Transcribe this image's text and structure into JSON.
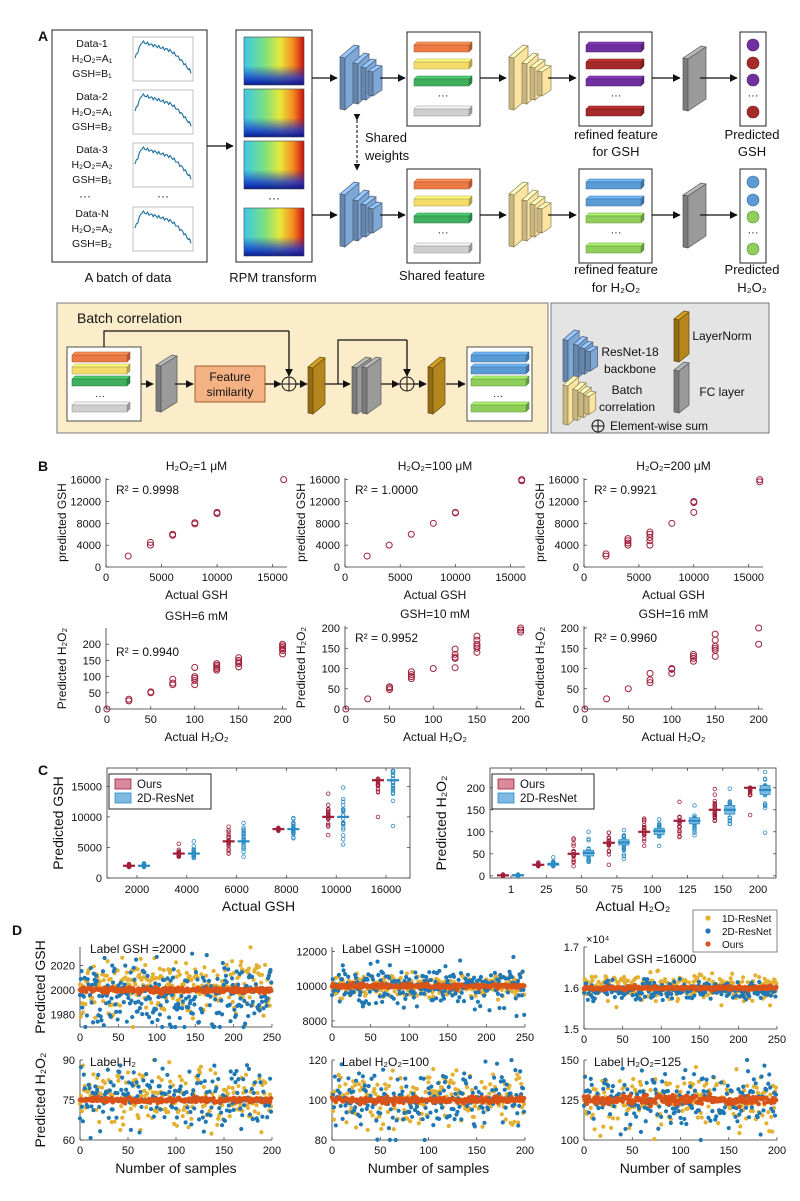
{
  "panel_labels": {
    "a": "A",
    "b": "B",
    "c": "C",
    "d": "D"
  },
  "diagram": {
    "data_entries": [
      {
        "name": "Data-1",
        "h2o2": "H₂O₂=A₁",
        "gsh": "GSH=B₁"
      },
      {
        "name": "Data-2",
        "h2o2": "H₂O₂=A₁",
        "gsh": "GSH=B₂"
      },
      {
        "name": "Data-3",
        "h2o2": "H₂O₂=A₂",
        "gsh": "GSH=B₁"
      },
      {
        "name": "Data-N",
        "h2o2": "H₂O₂=A₂",
        "gsh": "GSH=B₂"
      }
    ],
    "ellipsis": "···",
    "shared_weights": [
      "Shared",
      "weights"
    ],
    "labels": {
      "batch": "A batch of data",
      "rpm": "RPM transform",
      "shared_feature": "Shared feature",
      "refined_gsh": [
        "refined feature",
        "for GSH"
      ],
      "refined_h2o2": [
        "refined feature",
        "for H₂O₂"
      ],
      "pred_gsh": [
        "Predicted",
        "GSH"
      ],
      "pred_h2o2": [
        "Predicted",
        "H₂O₂"
      ]
    },
    "batch_correlation": {
      "title": "Batch correlation",
      "feature_similarity": [
        "Feature",
        "similarity"
      ]
    },
    "legend": {
      "resnet": [
        "ResNet-18",
        "backbone"
      ],
      "layernorm": "LayerNorm",
      "batchcorr": [
        "Batch",
        "correlation"
      ],
      "fc": "FC layer",
      "sum": "Element-wise sum"
    },
    "colors": {
      "backbone": "#7fa7d6",
      "batch_corr": "#fbe3a0",
      "fc": "#9a9a9a",
      "layernorm": "#b5861c",
      "orange": "#ec7a45",
      "yellow": "#f3dc6a",
      "green": "#3fae5d",
      "gray": "#cfcfcf",
      "purple": "#7030a0",
      "darkred": "#a52a2a",
      "blue": "#5b9bd5",
      "lightgreen": "#8fce5a",
      "similarity": "#f4b183",
      "batch_bg": "#fbedc9",
      "legend_bg": "#e4e4e4"
    }
  },
  "chart_data": [
    {
      "type": "scatter",
      "panel": "B",
      "title": "H₂O₂=1 μM",
      "annotation": "R² = 0.9998",
      "xlabel": "Actual GSH",
      "ylabel": "predicted GSH",
      "xlim": [
        0,
        16300
      ],
      "ylim": [
        0,
        16300
      ],
      "xticks": [
        0,
        5000,
        10000,
        15000
      ],
      "yticks": [
        0,
        4000,
        8000,
        12000,
        16000
      ],
      "color": "#a0203a",
      "points": [
        {
          "x": 2000,
          "y": [
            2000
          ]
        },
        {
          "x": 4000,
          "y": [
            4000,
            4500
          ]
        },
        {
          "x": 6000,
          "y": [
            5800,
            6000
          ]
        },
        {
          "x": 8000,
          "y": [
            7900,
            8100
          ]
        },
        {
          "x": 10000,
          "y": [
            9800,
            10000
          ]
        },
        {
          "x": 16000,
          "y": [
            16000
          ]
        }
      ]
    },
    {
      "type": "scatter",
      "panel": "B",
      "title": "H₂O₂=100 μM",
      "annotation": "R² = 1.0000",
      "xlabel": "Actual GSH",
      "ylabel": "predicted GSH",
      "xlim": [
        0,
        16300
      ],
      "ylim": [
        0,
        16300
      ],
      "xticks": [
        0,
        5000,
        10000,
        15000
      ],
      "yticks": [
        0,
        4000,
        8000,
        12000,
        16000
      ],
      "color": "#a0203a",
      "points": [
        {
          "x": 2000,
          "y": [
            2000
          ]
        },
        {
          "x": 4000,
          "y": [
            4000
          ]
        },
        {
          "x": 6000,
          "y": [
            6000
          ]
        },
        {
          "x": 8000,
          "y": [
            8000
          ]
        },
        {
          "x": 10000,
          "y": [
            9900,
            10000
          ]
        },
        {
          "x": 16000,
          "y": [
            15800,
            16000
          ]
        }
      ]
    },
    {
      "type": "scatter",
      "panel": "B",
      "title": "H₂O₂=200 μM",
      "annotation": "R² = 0.9921",
      "xlabel": "Actual GSH",
      "ylabel": "predicted GSH",
      "xlim": [
        0,
        16300
      ],
      "ylim": [
        0,
        16300
      ],
      "xticks": [
        0,
        5000,
        10000,
        15000
      ],
      "yticks": [
        0,
        4000,
        8000,
        12000,
        16000
      ],
      "color": "#a0203a",
      "points": [
        {
          "x": 2000,
          "y": [
            2000,
            2400
          ]
        },
        {
          "x": 4000,
          "y": [
            4000,
            4400,
            4800,
            5200
          ]
        },
        {
          "x": 6000,
          "y": [
            4000,
            4800,
            5400,
            6000,
            6400
          ]
        },
        {
          "x": 8000,
          "y": [
            8000
          ]
        },
        {
          "x": 10000,
          "y": [
            10000,
            11800,
            12000
          ]
        },
        {
          "x": 16000,
          "y": [
            15600,
            16000
          ]
        }
      ]
    },
    {
      "type": "scatter",
      "panel": "B",
      "title": "GSH=6 mM",
      "annotation": "R² = 0.9940",
      "xlabel": "Actual H₂O₂",
      "ylabel": "Predicted H₂O₂",
      "xlim": [
        -1,
        205
      ],
      "ylim": [
        0,
        250
      ],
      "xticks": [
        0,
        50,
        100,
        150,
        200
      ],
      "yticks": [
        0,
        50,
        100,
        150,
        200
      ],
      "color": "#a0203a",
      "points": [
        {
          "x": 0,
          "y": [
            0
          ]
        },
        {
          "x": 25,
          "y": [
            25,
            30
          ]
        },
        {
          "x": 50,
          "y": [
            50,
            53
          ]
        },
        {
          "x": 75,
          "y": [
            75,
            80,
            92
          ]
        },
        {
          "x": 100,
          "y": [
            75,
            88,
            95,
            100,
            128
          ]
        },
        {
          "x": 125,
          "y": [
            120,
            125,
            130,
            135,
            140
          ]
        },
        {
          "x": 150,
          "y": [
            130,
            140,
            145,
            150,
            158
          ]
        },
        {
          "x": 200,
          "y": [
            170,
            180,
            185,
            190,
            195,
            200
          ]
        }
      ]
    },
    {
      "type": "scatter",
      "panel": "B",
      "title": "GSH=10 mM",
      "annotation": "R² = 0.9952",
      "xlabel": "Actual H₂O₂",
      "ylabel": "Predicted H₂O₂",
      "xlim": [
        -1,
        205
      ],
      "ylim": [
        0,
        205
      ],
      "xticks": [
        0,
        50,
        100,
        150,
        200
      ],
      "yticks": [
        0,
        50,
        100,
        150,
        200
      ],
      "color": "#a0203a",
      "points": [
        {
          "x": 0,
          "y": [
            0
          ]
        },
        {
          "x": 25,
          "y": [
            25
          ]
        },
        {
          "x": 50,
          "y": [
            48,
            52,
            55
          ]
        },
        {
          "x": 75,
          "y": [
            75,
            80,
            85,
            92
          ]
        },
        {
          "x": 100,
          "y": [
            100
          ]
        },
        {
          "x": 125,
          "y": [
            102,
            125,
            128,
            135,
            148
          ]
        },
        {
          "x": 150,
          "y": [
            140,
            150,
            155,
            160,
            170,
            180
          ]
        },
        {
          "x": 200,
          "y": [
            190,
            195,
            200
          ]
        }
      ]
    },
    {
      "type": "scatter",
      "panel": "B",
      "title": "GSH=16 mM",
      "annotation": "R² = 0.9960",
      "xlabel": "Actual H₂O₂",
      "ylabel": "Predicted H₂O₂",
      "xlim": [
        -1,
        205
      ],
      "ylim": [
        0,
        205
      ],
      "xticks": [
        0,
        50,
        100,
        150,
        200
      ],
      "yticks": [
        0,
        50,
        100,
        150,
        200
      ],
      "color": "#a0203a",
      "points": [
        {
          "x": 0,
          "y": [
            0
          ]
        },
        {
          "x": 25,
          "y": [
            25
          ]
        },
        {
          "x": 50,
          "y": [
            50
          ]
        },
        {
          "x": 75,
          "y": [
            65,
            72,
            88
          ]
        },
        {
          "x": 100,
          "y": [
            88,
            98,
            100
          ]
        },
        {
          "x": 125,
          "y": [
            118,
            125,
            130,
            135
          ]
        },
        {
          "x": 150,
          "y": [
            130,
            145,
            150,
            155,
            170,
            185
          ]
        },
        {
          "x": 200,
          "y": [
            160,
            200
          ]
        }
      ]
    },
    {
      "type": "box",
      "panel": "C",
      "xlabel": "Actual GSH",
      "ylabel": "Predicted GSH",
      "categories": [
        "2000",
        "4000",
        "6000",
        "8000",
        "10000",
        "16000"
      ],
      "ylim": [
        0,
        18000
      ],
      "yticks": [
        0,
        5000,
        10000,
        15000
      ],
      "legend": {
        "placement": "top-left",
        "entries": [
          "Ours",
          "2D-ResNet"
        ]
      },
      "series": [
        {
          "name": "Ours",
          "color": "#a0203a",
          "median": [
            2000,
            4000,
            6000,
            8000,
            10000,
            16000
          ],
          "range": [
            [
              1800,
              2300
            ],
            [
              3500,
              5600
            ],
            [
              4000,
              8400
            ],
            [
              7700,
              8200
            ],
            [
              7000,
              13800
            ],
            [
              10000,
              16200
            ]
          ]
        },
        {
          "name": "2D-ResNet",
          "color": "#2b8cc4",
          "median": [
            2000,
            4000,
            6000,
            8000,
            10000,
            16000
          ],
          "range": [
            [
              1800,
              2400
            ],
            [
              3300,
              6000
            ],
            [
              3500,
              9000
            ],
            [
              6500,
              9800
            ],
            [
              5500,
              14800
            ],
            [
              8500,
              17500
            ]
          ]
        }
      ]
    },
    {
      "type": "box",
      "panel": "C",
      "xlabel": "Actual H₂O₂",
      "ylabel": "Predicted H₂O₂",
      "categories": [
        "1",
        "25",
        "50",
        "75",
        "100",
        "125",
        "150",
        "200"
      ],
      "ylim": [
        -5,
        245
      ],
      "yticks": [
        0,
        50,
        100,
        150,
        200
      ],
      "legend": {
        "placement": "top-left",
        "entries": [
          "Ours",
          "2D-ResNet"
        ]
      },
      "series": [
        {
          "name": "Ours",
          "color": "#a0203a",
          "median": [
            1,
            25,
            50,
            75,
            100,
            125,
            150,
            200
          ],
          "range": [
            [
              0,
              3
            ],
            [
              22,
              30
            ],
            [
              22,
              85
            ],
            [
              25,
              98
            ],
            [
              68,
              130
            ],
            [
              88,
              168
            ],
            [
              125,
              197
            ],
            [
              138,
              200
            ]
          ]
        },
        {
          "name": "2D-ResNet",
          "color": "#2b8cc4",
          "median": [
            1,
            26,
            52,
            76,
            102,
            125,
            150,
            195
          ],
          "box": [
            [
              0,
              3
            ],
            [
              24,
              29
            ],
            [
              45,
              58
            ],
            [
              70,
              82
            ],
            [
              94,
              108
            ],
            [
              118,
              132
            ],
            [
              140,
              160
            ],
            [
              185,
              205
            ]
          ],
          "range": [
            [
              0,
              3
            ],
            [
              22,
              42
            ],
            [
              32,
              100
            ],
            [
              38,
              104
            ],
            [
              68,
              128
            ],
            [
              92,
              160
            ],
            [
              118,
              198
            ],
            [
              98,
              236
            ]
          ]
        }
      ]
    },
    {
      "type": "scatter",
      "panel": "D",
      "title": "Label GSH =2000",
      "ylabel": "Predicted GSH",
      "label_value": 2000,
      "n_samples": 250,
      "xlim": [
        0,
        250
      ],
      "ylim": [
        1970,
        2035
      ],
      "xticks": [
        0,
        50,
        100,
        150,
        200,
        250
      ],
      "yticks": [
        1980,
        2000,
        2020
      ],
      "series": [
        {
          "name": "1D-ResNet",
          "color": "#e3b031",
          "center": 2004,
          "spread": 12
        },
        {
          "name": "2D-ResNet",
          "color": "#1f77b4",
          "center": 1996,
          "spread": 13
        },
        {
          "name": "Ours",
          "color": "#d95319",
          "center": 2000,
          "spread": 1
        }
      ]
    },
    {
      "type": "scatter",
      "panel": "D",
      "title": "Label GSH =10000",
      "label_value": 10000,
      "n_samples": 250,
      "xlim": [
        0,
        250
      ],
      "ylim": [
        7650,
        12250
      ],
      "xticks": [
        0,
        50,
        100,
        150,
        200,
        250
      ],
      "yticks": [
        8000,
        10000,
        12000
      ],
      "series": [
        {
          "name": "1D-ResNet",
          "color": "#e3b031",
          "center": 10000,
          "spread": 350
        },
        {
          "name": "2D-ResNet",
          "color": "#1f77b4",
          "center": 10000,
          "spread": 600
        },
        {
          "name": "Ours",
          "color": "#d95319",
          "center": 10000,
          "spread": 60
        }
      ]
    },
    {
      "type": "scatter",
      "panel": "D",
      "title": "Label GSH =16000",
      "label_value": 16000,
      "n_samples": 250,
      "y_multiplier": "×10⁴",
      "xlim": [
        0,
        250
      ],
      "ylim": [
        15000,
        17000
      ],
      "xticks": [
        0,
        50,
        100,
        150,
        200,
        250
      ],
      "yticks": [
        15000,
        16000,
        17000
      ],
      "ytick_labels": [
        "1.5",
        "1.6",
        "1.7"
      ],
      "legend": {
        "placement": "top-right",
        "entries": [
          "1D-ResNet",
          "2D-ResNet",
          "Ours"
        ]
      },
      "series": [
        {
          "name": "1D-ResNet",
          "color": "#e3b031",
          "center": 16030,
          "spread": 150
        },
        {
          "name": "2D-ResNet",
          "color": "#1f77b4",
          "center": 15940,
          "spread": 110
        },
        {
          "name": "Ours",
          "color": "#d95319",
          "center": 16000,
          "spread": 20
        }
      ]
    },
    {
      "type": "scatter",
      "panel": "D",
      "title": "Label H₂",
      "ylabel": "Predicted H₂O₂",
      "xlabel": "Number of samples",
      "label_value": 75,
      "n_samples": 200,
      "xlim": [
        0,
        200
      ],
      "ylim": [
        60,
        90
      ],
      "xticks": [
        0,
        50,
        100,
        150,
        200
      ],
      "yticks": [
        60,
        75,
        90
      ],
      "series": [
        {
          "name": "1D-ResNet",
          "color": "#e3b031",
          "center": 76,
          "spread": 5.5
        },
        {
          "name": "2D-ResNet",
          "color": "#1f77b4",
          "center": 76,
          "spread": 6
        },
        {
          "name": "Ours",
          "color": "#d95319",
          "center": 75,
          "spread": 0.5
        }
      ]
    },
    {
      "type": "scatter",
      "panel": "D",
      "title": "Label H₂O₂=100",
      "xlabel": "Number of samples",
      "label_value": 100,
      "n_samples": 200,
      "xlim": [
        0,
        200
      ],
      "ylim": [
        80,
        120
      ],
      "xticks": [
        0,
        50,
        100,
        150,
        200
      ],
      "yticks": [
        80,
        100,
        120
      ],
      "series": [
        {
          "name": "1D-ResNet",
          "color": "#e3b031",
          "center": 101,
          "spread": 7
        },
        {
          "name": "2D-ResNet",
          "color": "#1f77b4",
          "center": 100,
          "spread": 8
        },
        {
          "name": "Ours",
          "color": "#d95319",
          "center": 100,
          "spread": 0.8
        }
      ]
    },
    {
      "type": "scatter",
      "panel": "D",
      "title": "Label H₂O₂=125",
      "xlabel": "Number of samples",
      "label_value": 125,
      "n_samples": 200,
      "xlim": [
        0,
        200
      ],
      "ylim": [
        100,
        150
      ],
      "xticks": [
        0,
        50,
        100,
        150,
        200
      ],
      "yticks": [
        100,
        125,
        150
      ],
      "series": [
        {
          "name": "1D-ResNet",
          "color": "#e3b031",
          "center": 125,
          "spread": 8
        },
        {
          "name": "2D-ResNet",
          "color": "#1f77b4",
          "center": 125,
          "spread": 9
        },
        {
          "name": "Ours",
          "color": "#d95319",
          "center": 125,
          "spread": 1.5
        }
      ]
    }
  ]
}
